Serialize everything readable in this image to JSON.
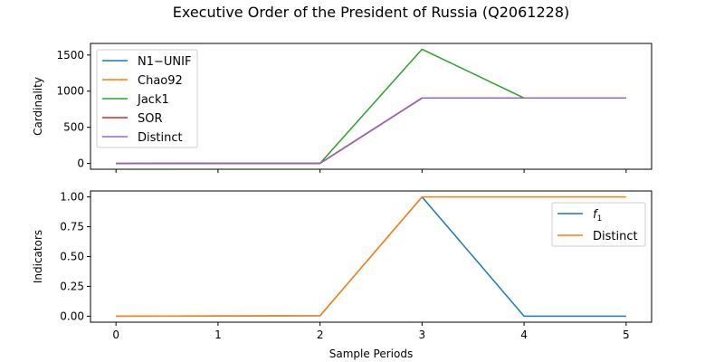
{
  "chart_data": {
    "type": "line",
    "title": "Executive Order of the President of Russia (Q2061228)",
    "xlabel": "Sample Periods",
    "x": [
      0,
      1,
      2,
      3,
      4,
      5
    ],
    "xticks": [
      "0",
      "1",
      "2",
      "3",
      "4",
      "5"
    ],
    "xlim": [
      -0.25,
      5.25
    ],
    "colors": {
      "blue": "#1f77b4",
      "orange": "#ff7f0e",
      "green": "#2ca02c",
      "red": "#d62728",
      "purple": "#9467bd"
    },
    "panels": [
      {
        "ylabel": "Cardinality",
        "ylim": [
          -80,
          1660
        ],
        "yticks": [
          0,
          500,
          1000,
          1500
        ],
        "legend": "top-left",
        "series": [
          {
            "name": "N1−UNIF",
            "color": "#1f77b4",
            "values": [
              0,
              1,
              2,
              905,
              905,
              905
            ]
          },
          {
            "name": "Chao92",
            "color": "#ff7f0e",
            "values": [
              0,
              1,
              2,
              905,
              905,
              905
            ]
          },
          {
            "name": "Jack1",
            "color": "#2ca02c",
            "values": [
              0,
              1,
              2,
              1580,
              905,
              905
            ]
          },
          {
            "name": "SOR",
            "color": "#d62728",
            "values": [
              0,
              1,
              2,
              905,
              905,
              905
            ]
          },
          {
            "name": "Distinct",
            "color": "#9467bd",
            "values": [
              0,
              1,
              2,
              905,
              905,
              905
            ]
          }
        ]
      },
      {
        "ylabel": "Indicators",
        "ylim": [
          -0.05,
          1.05
        ],
        "yticks": [
          0.0,
          0.25,
          0.5,
          0.75,
          1.0
        ],
        "ytick_labels": [
          "0.00",
          "0.25",
          "0.50",
          "0.75",
          "1.00"
        ],
        "legend": "top-right",
        "series": [
          {
            "name": "f",
            "subscript": "1",
            "color": "#1f77b4",
            "values": [
              0,
              0.002,
              0.004,
              1.0,
              0.0,
              0.0
            ]
          },
          {
            "name": "Distinct",
            "color": "#ff7f0e",
            "values": [
              0,
              0.002,
              0.004,
              1.0,
              1.0,
              1.0
            ]
          }
        ]
      }
    ]
  }
}
